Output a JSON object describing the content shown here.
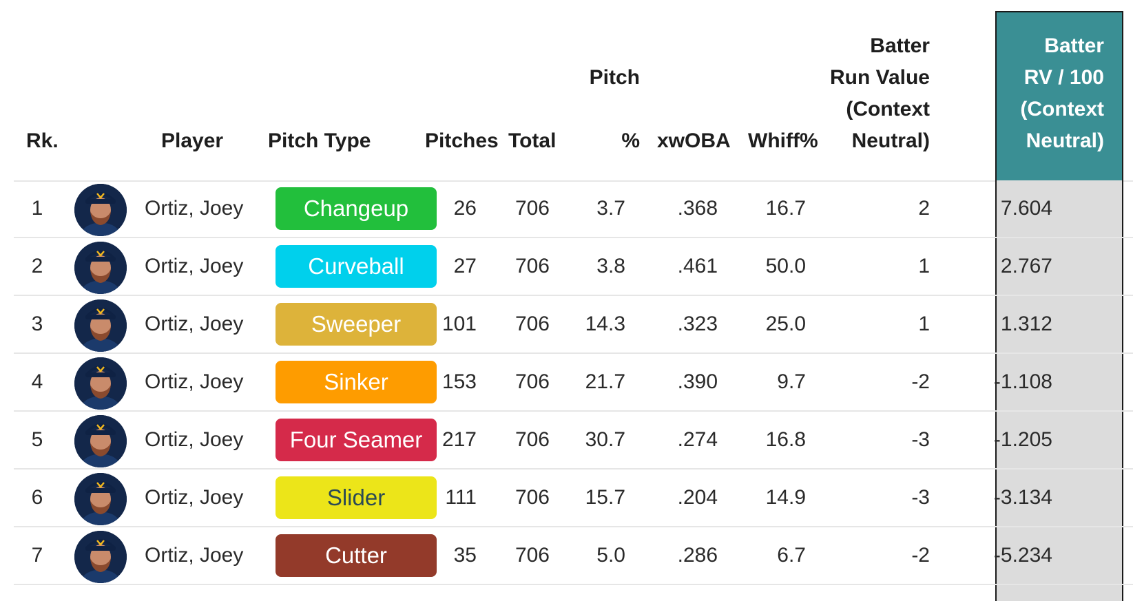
{
  "table": {
    "headers": {
      "rank": "Rk.",
      "player": "Player",
      "pitch_type": "Pitch Type",
      "pitches": "Pitches",
      "total": "Total",
      "pitch_pct": [
        "Pitch",
        "%"
      ],
      "xwoba": "xwOBA",
      "whiff": "Whiff%",
      "run_value": [
        "Batter",
        "Run Value",
        "(Context",
        "Neutral)"
      ],
      "rv100": [
        "Batter",
        "RV / 100",
        "(Context",
        "Neutral)"
      ]
    },
    "highlight_color": "#3a8f94",
    "rows": [
      {
        "rank": "1",
        "player": "Ortiz, Joey",
        "pitch_type": "Changeup",
        "pitch_color": "#22bf3c",
        "pitch_text_color": "#ffffff",
        "pitches": "26",
        "total": "706",
        "pct": "3.7",
        "xwoba": ".368",
        "whiff": "16.7",
        "rv": "2",
        "rv100": "7.604"
      },
      {
        "rank": "2",
        "player": "Ortiz, Joey",
        "pitch_type": "Curveball",
        "pitch_color": "#00d0ec",
        "pitch_text_color": "#ffffff",
        "pitches": "27",
        "total": "706",
        "pct": "3.8",
        "xwoba": ".461",
        "whiff": "50.0",
        "rv": "1",
        "rv100": "2.767"
      },
      {
        "rank": "3",
        "player": "Ortiz, Joey",
        "pitch_type": "Sweeper",
        "pitch_color": "#ddb33a",
        "pitch_text_color": "#ffffff",
        "pitches": "101",
        "total": "706",
        "pct": "14.3",
        "xwoba": ".323",
        "whiff": "25.0",
        "rv": "1",
        "rv100": "1.312"
      },
      {
        "rank": "4",
        "player": "Ortiz, Joey",
        "pitch_type": "Sinker",
        "pitch_color": "#fe9c00",
        "pitch_text_color": "#ffffff",
        "pitches": "153",
        "total": "706",
        "pct": "21.7",
        "xwoba": ".390",
        "whiff": "9.7",
        "rv": "-2",
        "rv100": "-1.108"
      },
      {
        "rank": "5",
        "player": "Ortiz, Joey",
        "pitch_type": "Four Seamer",
        "pitch_color": "#d52a4a",
        "pitch_text_color": "#ffffff",
        "pitches": "217",
        "total": "706",
        "pct": "30.7",
        "xwoba": ".274",
        "whiff": "16.8",
        "rv": "-3",
        "rv100": "-1.205"
      },
      {
        "rank": "6",
        "player": "Ortiz, Joey",
        "pitch_type": "Slider",
        "pitch_color": "#ece519",
        "pitch_text_color": "#2b4a55",
        "pitches": "111",
        "total": "706",
        "pct": "15.7",
        "xwoba": ".204",
        "whiff": "14.9",
        "rv": "-3",
        "rv100": "-3.134"
      },
      {
        "rank": "7",
        "player": "Ortiz, Joey",
        "pitch_type": "Cutter",
        "pitch_color": "#933a2a",
        "pitch_text_color": "#ffffff",
        "pitches": "35",
        "total": "706",
        "pct": "5.0",
        "xwoba": ".286",
        "whiff": "6.7",
        "rv": "-2",
        "rv100": "-5.234"
      }
    ]
  },
  "icons": {
    "avatar": "player-headshot-icon"
  }
}
